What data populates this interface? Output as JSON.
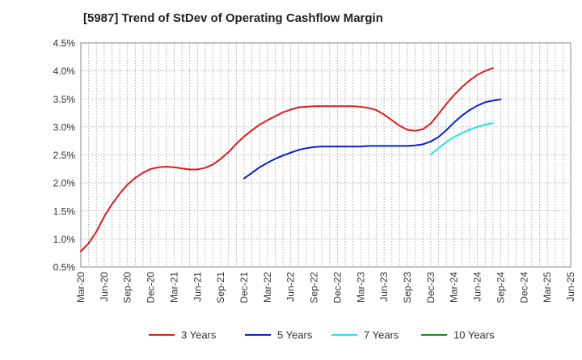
{
  "chart_data": {
    "type": "line",
    "title": "[5987]  Trend of StDev of Operating Cashflow Margin",
    "xlabel": "",
    "ylabel": "",
    "ylim": [
      0.5,
      4.5
    ],
    "y_ticks": [
      "0.5%",
      "1.0%",
      "1.5%",
      "2.0%",
      "2.5%",
      "3.0%",
      "3.5%",
      "4.0%",
      "4.5%"
    ],
    "x_ticks": [
      "Mar-20",
      "Jun-20",
      "Sep-20",
      "Dec-20",
      "Mar-21",
      "Jun-21",
      "Sep-21",
      "Dec-21",
      "Mar-22",
      "Jun-22",
      "Sep-22",
      "Dec-22",
      "Mar-23",
      "Jun-23",
      "Sep-23",
      "Dec-23",
      "Mar-24",
      "Jun-24",
      "Sep-24",
      "Dec-24",
      "Mar-25",
      "Jun-25"
    ],
    "grid": true,
    "legend_position": "bottom",
    "series": [
      {
        "name": "3 Years",
        "color": "#dd1c1c",
        "start_month_index": 0,
        "values": [
          0.78,
          0.92,
          1.13,
          1.4,
          1.62,
          1.81,
          1.97,
          2.09,
          2.18,
          2.25,
          2.28,
          2.29,
          2.28,
          2.26,
          2.24,
          2.24,
          2.27,
          2.33,
          2.43,
          2.55,
          2.7,
          2.83,
          2.94,
          3.04,
          3.12,
          3.19,
          3.26,
          3.31,
          3.35,
          3.36,
          3.37,
          3.37,
          3.37,
          3.37,
          3.37,
          3.37,
          3.36,
          3.34,
          3.3,
          3.22,
          3.12,
          3.02,
          2.95,
          2.93,
          2.96,
          3.06,
          3.23,
          3.41,
          3.57,
          3.71,
          3.83,
          3.93,
          4.0,
          4.05
        ]
      },
      {
        "name": "5 Years",
        "color": "#0a1fd6",
        "start_month_index": 21,
        "values": [
          2.08,
          2.18,
          2.28,
          2.36,
          2.43,
          2.49,
          2.54,
          2.59,
          2.62,
          2.64,
          2.65,
          2.65,
          2.65,
          2.65,
          2.65,
          2.65,
          2.66,
          2.66,
          2.66,
          2.66,
          2.66,
          2.66,
          2.67,
          2.69,
          2.74,
          2.82,
          2.94,
          3.08,
          3.2,
          3.3,
          3.38,
          3.44,
          3.47,
          3.49
        ]
      },
      {
        "name": "7 Years",
        "color": "#22e5e5",
        "start_month_index": 45,
        "values": [
          2.51,
          2.62,
          2.73,
          2.82,
          2.89,
          2.95,
          3.0,
          3.04,
          3.07
        ]
      },
      {
        "name": "10 Years",
        "color": "#1a8a1a",
        "start_month_index": 0,
        "values": []
      }
    ]
  }
}
